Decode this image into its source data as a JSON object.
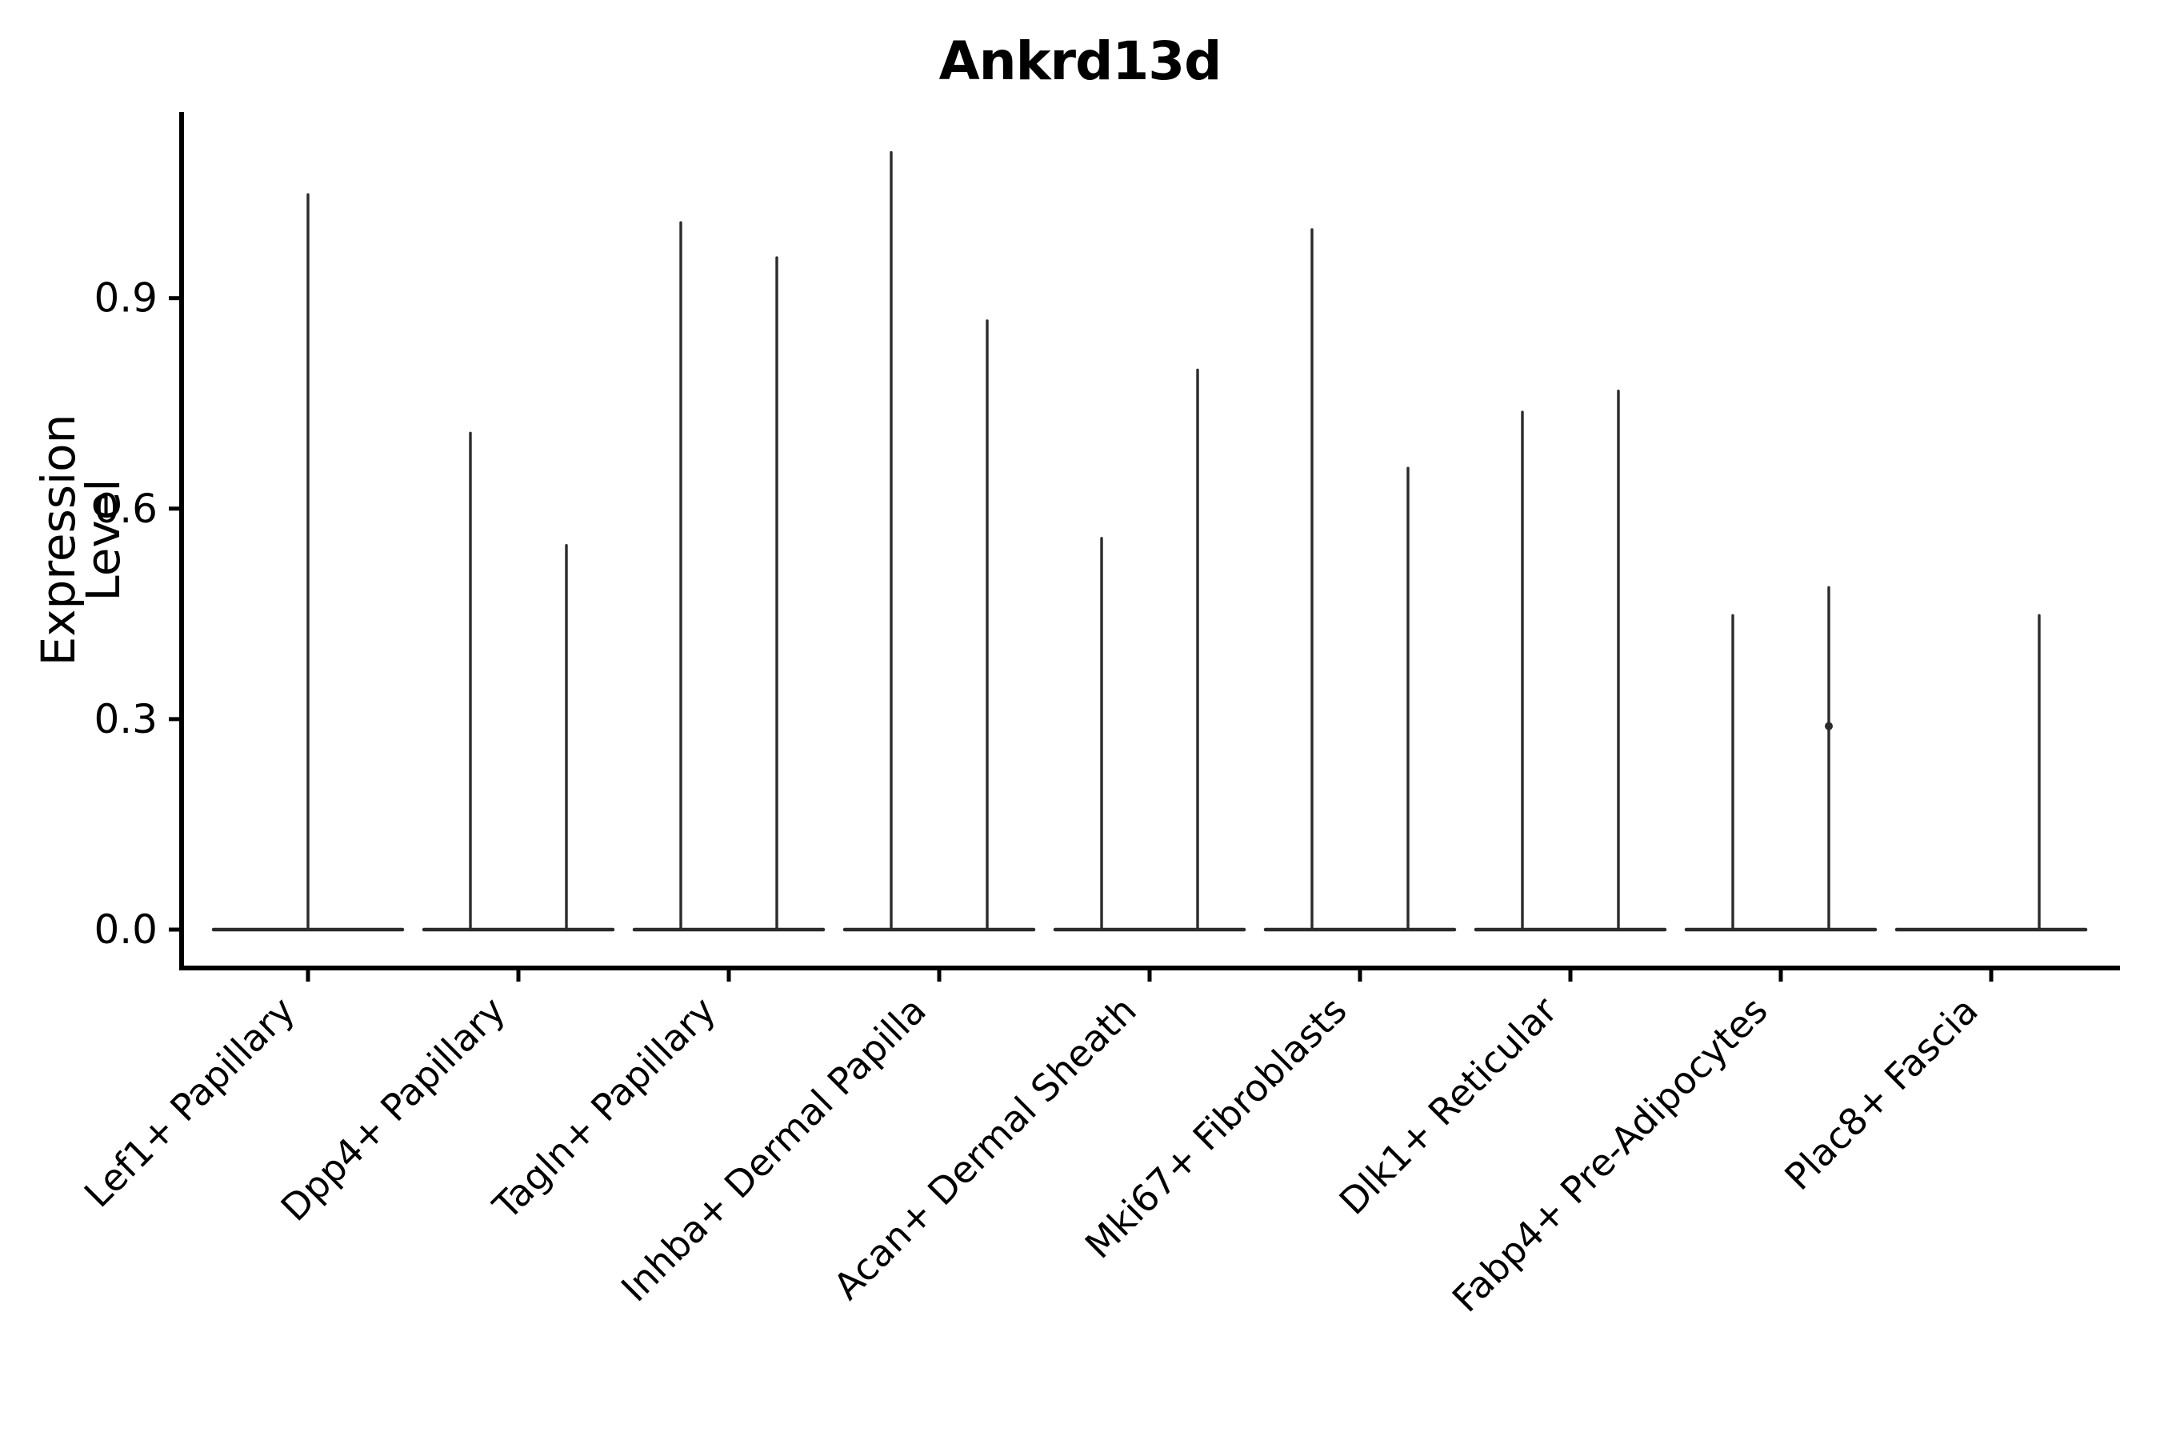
{
  "figure": {
    "background": "#ffffff"
  },
  "chart_data": {
    "type": "violin",
    "title": "Ankrd13d",
    "ylabel": "Expression Level",
    "xlabel": "",
    "grid": false,
    "legend": "none",
    "ylim": [
      -0.05,
      1.17
    ],
    "ytick_labels": [
      "0.0",
      "0.3",
      "0.6",
      "0.9"
    ],
    "ytick_values": [
      0.0,
      0.3,
      0.6,
      0.9
    ],
    "violin_color": "#2b2b2b",
    "axis_color": "#000000",
    "style_note": "needle-thin violins: wide flat base at 0, thin spike up to max expression",
    "categories": [
      {
        "label": "Lef1+ Papillary",
        "violins": [
          {
            "pos": 0.0,
            "max": 1.05
          }
        ]
      },
      {
        "label": "Dpp4+ Papillary",
        "violins": [
          {
            "pos": -0.25,
            "max": 0.71
          },
          {
            "pos": 0.25,
            "max": 0.55
          }
        ]
      },
      {
        "label": "Tagln+ Papillary",
        "violins": [
          {
            "pos": -0.25,
            "max": 1.01
          },
          {
            "pos": 0.25,
            "max": 0.96
          }
        ]
      },
      {
        "label": "Inhba+ Dermal Papilla",
        "violins": [
          {
            "pos": -0.25,
            "max": 1.11
          },
          {
            "pos": 0.25,
            "max": 0.87
          }
        ]
      },
      {
        "label": "Acan+ Dermal Sheath",
        "violins": [
          {
            "pos": -0.25,
            "max": 0.56
          },
          {
            "pos": 0.25,
            "max": 0.8
          }
        ]
      },
      {
        "label": "Mki67+ Fibroblasts",
        "violins": [
          {
            "pos": -0.25,
            "max": 1.0
          },
          {
            "pos": 0.25,
            "max": 0.66
          }
        ]
      },
      {
        "label": "Dlk1+ Reticular",
        "violins": [
          {
            "pos": -0.25,
            "max": 0.74
          },
          {
            "pos": 0.25,
            "max": 0.77
          }
        ]
      },
      {
        "label": "Fabp4+ Pre-Adipocytes",
        "violins": [
          {
            "pos": -0.25,
            "max": 0.45
          },
          {
            "pos": 0.25,
            "max": 0.49,
            "dot": 0.29
          }
        ]
      },
      {
        "label": "Plac8+ Fascia",
        "violins": [
          {
            "pos": -0.25,
            "max": 0.0
          },
          {
            "pos": 0.25,
            "max": 0.45
          }
        ]
      }
    ]
  }
}
